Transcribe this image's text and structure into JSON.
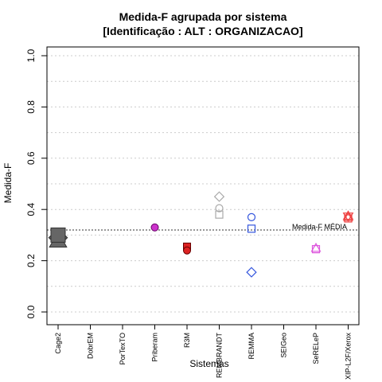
{
  "chart_data": {
    "type": "scatter",
    "title_line1": "Medida-F agrupada por sistema",
    "title_line2": "[Identificação : ALT : ORGANIZACAO]",
    "xlabel": "Sistemas",
    "ylabel": "Medida-F",
    "ylim": [
      0,
      1
    ],
    "y_ticks": [
      "0.0",
      "0.2",
      "0.4",
      "0.6",
      "0.8",
      "1.0"
    ],
    "y_tick_values": [
      0,
      0.2,
      0.4,
      0.6,
      0.8,
      1.0
    ],
    "grid": "horizontal dotted",
    "categories": [
      "Cage2",
      "DobrEM",
      "PorTexTO",
      "Priberam",
      "R3M",
      "REMBRANDT",
      "REMMA",
      "SEIGeo",
      "SeRELeP",
      "XIP-L2F/Xerox"
    ],
    "reference_line": {
      "label": "Medida-F MÉDIA",
      "value": 0.32,
      "style": "dotted"
    },
    "points": [
      {
        "category": "Cage2",
        "y": 0.29,
        "shape": "diamond-filled",
        "color": "#666666"
      },
      {
        "category": "Cage2",
        "y": 0.28,
        "shape": "triangle-filled",
        "color": "#666666"
      },
      {
        "category": "Cage2",
        "y": 0.3,
        "shape": "square-filled",
        "color": "#666666"
      },
      {
        "category": "Priberam",
        "y": 0.33,
        "shape": "circle-filled",
        "color": "#cc33cc"
      },
      {
        "category": "R3M",
        "y": 0.255,
        "shape": "square-filled",
        "color": "#dd2222"
      },
      {
        "category": "R3M",
        "y": 0.24,
        "shape": "circle-filled",
        "color": "#dd2222"
      },
      {
        "category": "REMBRANDT",
        "y": 0.45,
        "shape": "diamond-open",
        "color": "#aaaaaa"
      },
      {
        "category": "REMBRANDT",
        "y": 0.405,
        "shape": "circle-open",
        "color": "#aaaaaa"
      },
      {
        "category": "REMBRANDT",
        "y": 0.38,
        "shape": "square-open",
        "color": "#aaaaaa"
      },
      {
        "category": "REMMA",
        "y": 0.37,
        "shape": "circle-open",
        "color": "#3355dd"
      },
      {
        "category": "REMMA",
        "y": 0.325,
        "shape": "square-open",
        "color": "#3355dd"
      },
      {
        "category": "REMMA",
        "y": 0.155,
        "shape": "diamond-open",
        "color": "#3355dd"
      },
      {
        "category": "SeRELeP",
        "y": 0.25,
        "shape": "triangle-open",
        "color": "#dd55dd"
      },
      {
        "category": "SeRELeP",
        "y": 0.245,
        "shape": "square-open",
        "color": "#dd55dd"
      },
      {
        "category": "XIP-L2F/Xerox",
        "y": 0.375,
        "shape": "star-open",
        "color": "#ee4444"
      },
      {
        "category": "XIP-L2F/Xerox",
        "y": 0.37,
        "shape": "triangle-open",
        "color": "#ee4444"
      },
      {
        "category": "XIP-L2F/Xerox",
        "y": 0.365,
        "shape": "square-open",
        "color": "#ee4444"
      }
    ]
  }
}
